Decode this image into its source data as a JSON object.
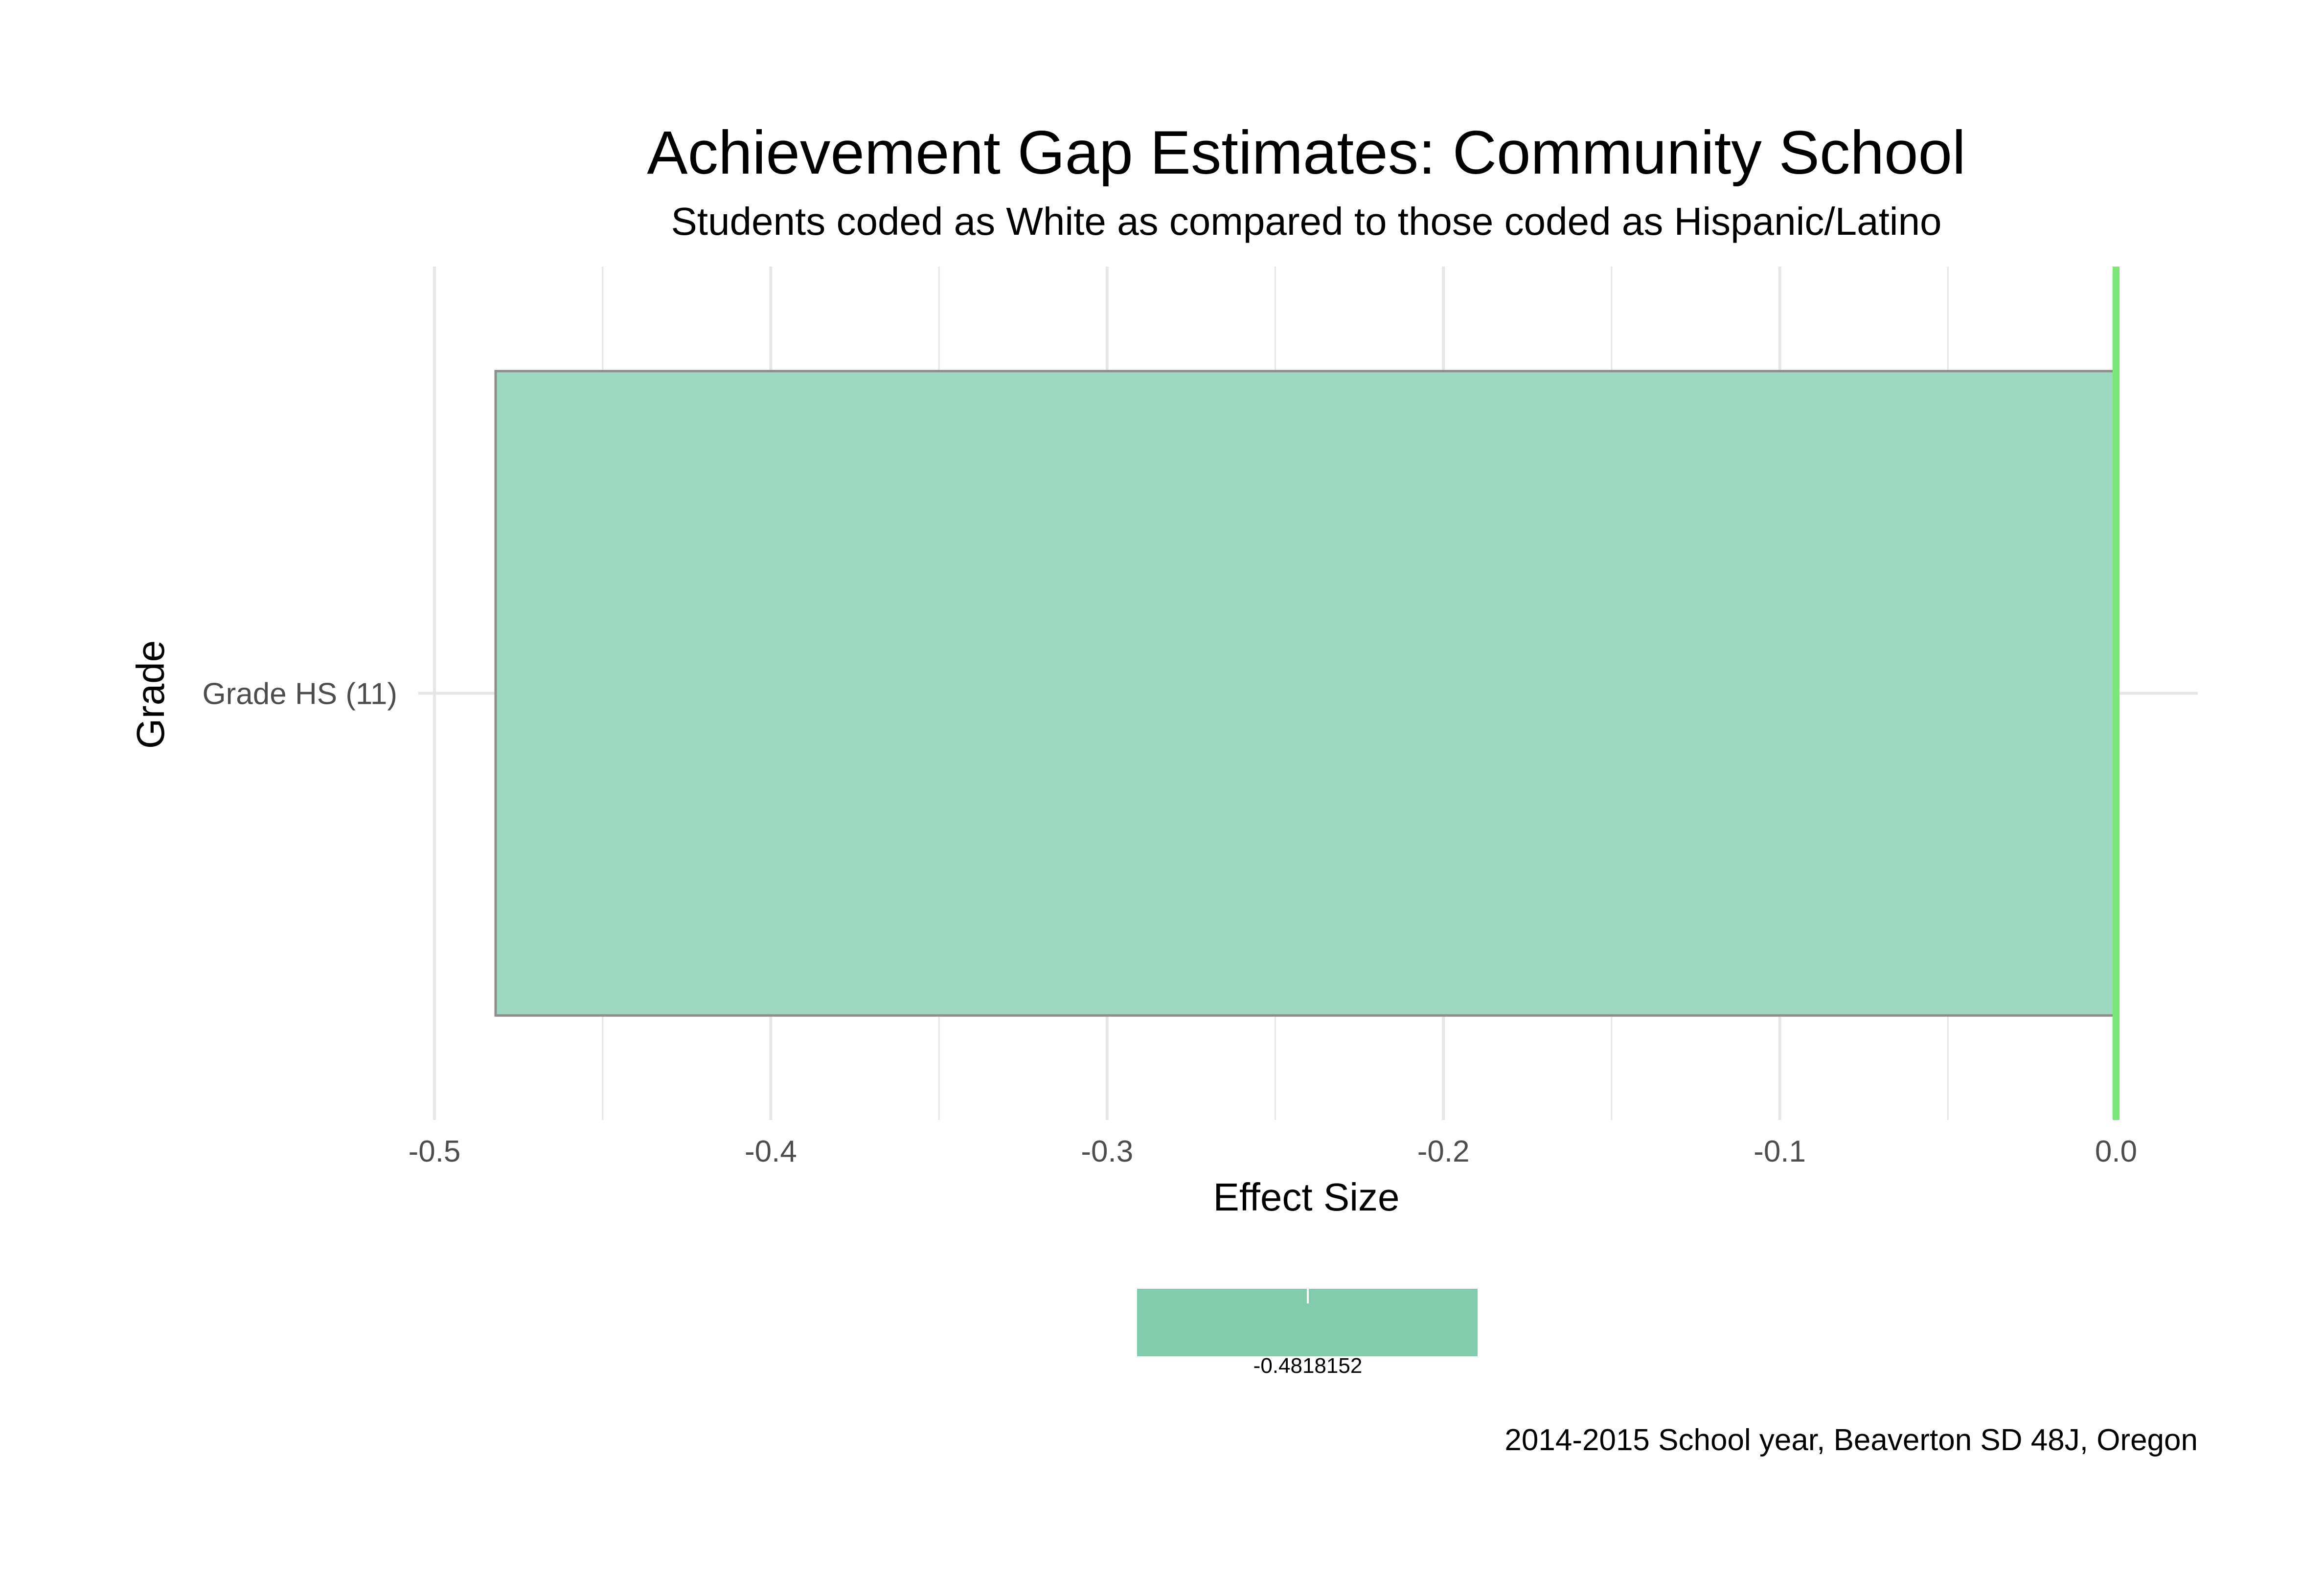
{
  "chart_data": {
    "type": "bar",
    "orientation": "horizontal",
    "title": "Achievement Gap Estimates: Community School",
    "subtitle": "Students coded as White as compared to those coded as Hispanic/Latino",
    "xlabel": "Effect Size",
    "ylabel": "Grade",
    "categories": [
      "Grade HS (11)"
    ],
    "values": [
      -0.4818152
    ],
    "xlim": [
      -0.5,
      0.0
    ],
    "xticks": [
      -0.5,
      -0.4,
      -0.3,
      -0.2,
      -0.1,
      0.0
    ],
    "xtick_labels": [
      "-0.5",
      "-0.4",
      "-0.3",
      "-0.2",
      "-0.1",
      "0.0"
    ],
    "reference_line": 0.0,
    "grid": true,
    "legend": {
      "placement": "bottom",
      "label": "-0.4818152"
    },
    "caption": "2014-2015 School year, Beaverton SD 48J, Oregon",
    "colors": {
      "bar_fill": "#9ed8c0",
      "bar_stroke": "#8e8e8e",
      "reference_line": "#7ce67a",
      "legend_fill": "#82cbad",
      "grid": "#e6e6e6",
      "text": "#000000",
      "tick_text": "#4d4d4d"
    }
  }
}
